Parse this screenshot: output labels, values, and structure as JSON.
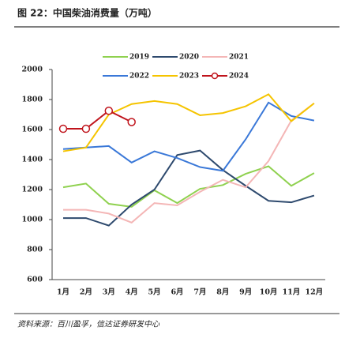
{
  "chart_data": {
    "type": "line",
    "title": "图 22：中国柴油消费量（万吨）",
    "source": "资料来源：百川盈孚，信达证券研发中心",
    "categories": [
      "1月",
      "2月",
      "3月",
      "4月",
      "5月",
      "6月",
      "7月",
      "8月",
      "9月",
      "10月",
      "11月",
      "12月"
    ],
    "series": [
      {
        "name": "2019",
        "color": "#8fd14f",
        "values": [
          1215,
          1240,
          1105,
          1085,
          1195,
          1110,
          1205,
          1230,
          1305,
          1355,
          1225,
          1310
        ]
      },
      {
        "name": "2020",
        "color": "#2e4a6e",
        "values": [
          1010,
          1010,
          960,
          1100,
          1200,
          1430,
          1460,
          1330,
          1225,
          1125,
          1115,
          1160
        ]
      },
      {
        "name": "2021",
        "color": "#f4b6b6",
        "values": [
          1065,
          1065,
          1040,
          980,
          1110,
          1095,
          1185,
          1265,
          1215,
          1390,
          1660,
          1775
        ]
      },
      {
        "name": "2022",
        "color": "#3a78d8",
        "values": [
          1470,
          1480,
          1490,
          1380,
          1455,
          1410,
          1350,
          1325,
          1535,
          1780,
          1690,
          1660
        ]
      },
      {
        "name": "2023",
        "color": "#f5c400",
        "values": [
          1455,
          1480,
          1700,
          1770,
          1790,
          1770,
          1695,
          1710,
          1755,
          1835,
          1655,
          1775
        ]
      },
      {
        "name": "2024",
        "color": "#c0141c",
        "values": [
          1605,
          1605,
          1725,
          1650,
          null,
          null,
          null,
          null,
          null,
          null,
          null,
          null
        ],
        "markers": true
      }
    ],
    "ylim": [
      600,
      2000
    ],
    "yticks": [
      600,
      800,
      1000,
      1200,
      1400,
      1600,
      1800,
      2000
    ]
  }
}
